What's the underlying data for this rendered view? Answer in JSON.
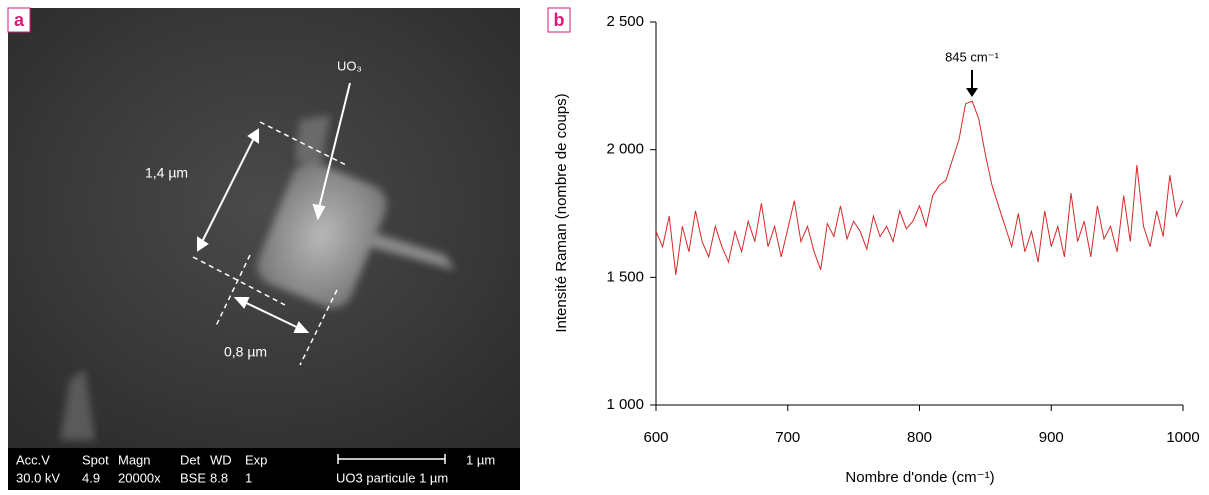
{
  "image_panel": {
    "panel_label": "a",
    "annotations": {
      "compound": "UO₃",
      "length": "1,4 µm",
      "width": "0,8 µm"
    },
    "info_bar": {
      "headers": [
        "Acc.V",
        "Spot",
        "Magn",
        "Det",
        "WD",
        "Exp"
      ],
      "values": [
        "30.0 kV",
        "4.9",
        "20000x",
        "BSE",
        "8.8",
        "1"
      ],
      "scale_label": "1 µm",
      "sample": "UO3 particule 1 µm"
    }
  },
  "chart_data": {
    "type": "line",
    "panel_label": "b",
    "y_label": "Intensité Raman (nombre de coups)",
    "x_label": "Nombre d'onde (cm⁻¹)",
    "annotation": "845 cm⁻¹",
    "x": [
      600,
      605,
      610,
      615,
      620,
      625,
      630,
      635,
      640,
      645,
      650,
      655,
      660,
      665,
      670,
      675,
      680,
      685,
      690,
      695,
      700,
      705,
      710,
      715,
      720,
      725,
      730,
      735,
      740,
      745,
      750,
      755,
      760,
      765,
      770,
      775,
      780,
      785,
      790,
      795,
      800,
      805,
      810,
      815,
      820,
      825,
      830,
      835,
      840,
      845,
      850,
      855,
      860,
      865,
      870,
      875,
      880,
      885,
      890,
      895,
      900,
      905,
      910,
      915,
      920,
      925,
      930,
      935,
      940,
      945,
      950,
      955,
      960,
      965,
      970,
      975,
      980,
      985,
      990,
      995,
      1000
    ],
    "series": [
      {
        "color": "#d42a2a",
        "values": [
          1680,
          1620,
          1740,
          1510,
          1700,
          1600,
          1760,
          1640,
          1580,
          1700,
          1620,
          1560,
          1680,
          1600,
          1720,
          1640,
          1790,
          1620,
          1700,
          1580,
          1690,
          1800,
          1640,
          1700,
          1600,
          1530,
          1710,
          1660,
          1780,
          1650,
          1720,
          1680,
          1610,
          1740,
          1660,
          1700,
          1640,
          1760,
          1690,
          1720,
          1780,
          1700,
          1820,
          1860,
          1880,
          1960,
          2040,
          2180,
          2190,
          2120,
          1980,
          1860,
          1780,
          1700,
          1620,
          1750,
          1600,
          1680,
          1560,
          1760,
          1620,
          1700,
          1580,
          1830,
          1640,
          1720,
          1580,
          1780,
          1650,
          1700,
          1600,
          1820,
          1640,
          1940,
          1700,
          1620,
          1760,
          1660,
          1900,
          1740,
          1800
        ]
      }
    ],
    "xlim": [
      600,
      1000
    ],
    "xticks": [
      600,
      700,
      800,
      900,
      1000
    ],
    "ylim": [
      1000,
      2500
    ],
    "yticks": [
      {
        "value": 1000,
        "label": "1 000"
      },
      {
        "value": 1500,
        "label": "1 500"
      },
      {
        "value": 2000,
        "label": "2 000"
      },
      {
        "value": 2500,
        "label": "2 500"
      }
    ]
  }
}
